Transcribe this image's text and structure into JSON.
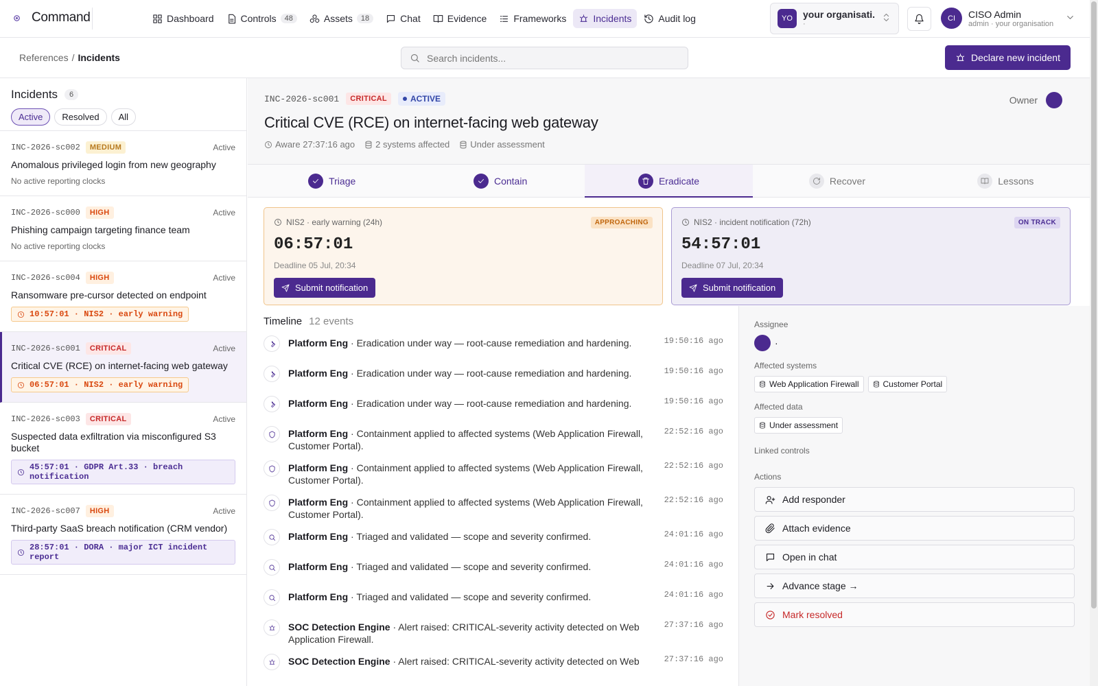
{
  "nav": {
    "brand": "Command",
    "items": [
      {
        "label": "Dashboard"
      },
      {
        "label": "Controls",
        "count": 48
      },
      {
        "label": "Assets",
        "count": 18
      },
      {
        "label": "Chat"
      },
      {
        "label": "Evidence"
      },
      {
        "label": "Frameworks"
      },
      {
        "label": "Incidents",
        "active": true
      },
      {
        "label": "Audit log"
      }
    ],
    "org": {
      "initials": "YO",
      "name": "your organisati...",
      "sub": "·"
    },
    "user": {
      "initials": "CI",
      "name": "CISO Admin",
      "sub": "admin · your organisation"
    }
  },
  "subheader": {
    "breadcrumb": {
      "parent": "References",
      "separator": "/",
      "current": "Incidents"
    },
    "search_placeholder": "Search incidents...",
    "declare_button": "Declare new incident"
  },
  "sidebar": {
    "title": "Incidents",
    "count": 6,
    "filters": [
      {
        "label": "Active",
        "active": true
      },
      {
        "label": "Resolved"
      },
      {
        "label": "All"
      }
    ],
    "incidents": [
      {
        "id": "INC-2026-sc002",
        "severity": "MEDIUM",
        "status": "Active",
        "title": "Anomalous privileged login from new geography",
        "note": "No active reporting clocks"
      },
      {
        "id": "INC-2026-sc000",
        "severity": "HIGH",
        "status": "Active",
        "title": "Phishing campaign targeting finance team",
        "note": "No active reporting clocks"
      },
      {
        "id": "INC-2026-sc004",
        "severity": "HIGH",
        "status": "Active",
        "title": "Ransomware pre-cursor detected on endpoint",
        "clock": "10:57:01 · NIS2 · early warning",
        "clock_tone": "warning"
      },
      {
        "id": "INC-2026-sc001",
        "severity": "CRITICAL",
        "status": "Active",
        "title": "Critical CVE (RCE) on internet-facing web gateway",
        "clock": "06:57:01 · NIS2 · early warning",
        "clock_tone": "warning",
        "selected": true
      },
      {
        "id": "INC-2026-sc003",
        "severity": "CRITICAL",
        "status": "Active",
        "title": "Suspected data exfiltration via misconfigured S3 bucket",
        "clock": "45:57:01 · GDPR Art.33 · breach notification",
        "clock_tone": "ok"
      },
      {
        "id": "INC-2026-sc007",
        "severity": "HIGH",
        "status": "Active",
        "title": "Third-party SaaS breach notification (CRM vendor)",
        "clock": "28:57:01 · DORA · major ICT incident report",
        "clock_tone": "ok"
      }
    ]
  },
  "detail": {
    "id": "INC-2026-sc001",
    "severity": "CRITICAL",
    "state": "ACTIVE",
    "owner_label": "Owner",
    "title": "Critical CVE (RCE) on internet-facing web gateway",
    "meta": [
      "Aware 27:37:16 ago",
      "2 systems affected",
      "Under assessment"
    ],
    "stages": [
      {
        "label": "Triage",
        "state": "done"
      },
      {
        "label": "Contain",
        "state": "done"
      },
      {
        "label": "Eradicate",
        "state": "active"
      },
      {
        "label": "Recover",
        "state": "pending"
      },
      {
        "label": "Lessons",
        "state": "pending"
      }
    ],
    "clocks": [
      {
        "label": "NIS2 · early warning (24h)",
        "badge": "APPROACHING",
        "time": "06:57:01",
        "deadline": "Deadline 05 Jul, 20:34",
        "button": "Submit notification",
        "tone": "warning"
      },
      {
        "label": "NIS2 · incident notification (72h)",
        "badge": "ON TRACK",
        "time": "54:57:01",
        "deadline": "Deadline 07 Jul, 20:34",
        "button": "Submit notification",
        "tone": "ok"
      }
    ],
    "timeline": {
      "title": "Timeline",
      "count": "12 events",
      "separator": "·",
      "events": [
        {
          "actor": "Platform Eng",
          "text": "Eradication under way — root-cause remediation and hardening.",
          "time": "19:50:16 ago"
        },
        {
          "actor": "Platform Eng",
          "text": "Eradication under way — root-cause remediation and hardening.",
          "time": "19:50:16 ago"
        },
        {
          "actor": "Platform Eng",
          "text": "Eradication under way — root-cause remediation and hardening.",
          "time": "19:50:16 ago"
        },
        {
          "actor": "Platform Eng",
          "text": "Containment applied to affected systems (Web Application Firewall, Customer Portal).",
          "time": "22:52:16 ago"
        },
        {
          "actor": "Platform Eng",
          "text": "Containment applied to affected systems (Web Application Firewall, Customer Portal).",
          "time": "22:52:16 ago"
        },
        {
          "actor": "Platform Eng",
          "text": "Containment applied to affected systems (Web Application Firewall, Customer Portal).",
          "time": "22:52:16 ago"
        },
        {
          "actor": "Platform Eng",
          "text": "Triaged and validated — scope and severity confirmed.",
          "time": "24:01:16 ago"
        },
        {
          "actor": "Platform Eng",
          "text": "Triaged and validated — scope and severity confirmed.",
          "time": "24:01:16 ago"
        },
        {
          "actor": "Platform Eng",
          "text": "Triaged and validated — scope and severity confirmed.",
          "time": "24:01:16 ago"
        },
        {
          "actor": "SOC Detection Engine",
          "text": "Alert raised: CRITICAL-severity activity detected on Web Application Firewall.",
          "time": "27:37:16 ago"
        },
        {
          "actor": "SOC Detection Engine",
          "text": "Alert raised: CRITICAL-severity activity detected on Web",
          "time": "27:37:16 ago"
        }
      ]
    },
    "panel": {
      "assignee_label": "Assignee",
      "assignee": "·",
      "systems_label": "Affected systems",
      "systems": [
        "Web Application Firewall",
        "Customer Portal"
      ],
      "data_label": "Affected data",
      "data": [
        "Under assessment"
      ],
      "controls_label": "Linked controls",
      "actions_label": "Actions",
      "actions": [
        {
          "label": "Add responder"
        },
        {
          "label": "Attach evidence"
        },
        {
          "label": "Open in chat"
        },
        {
          "label": "Advance stage →"
        },
        {
          "label": "Mark resolved",
          "danger": true
        }
      ]
    }
  }
}
